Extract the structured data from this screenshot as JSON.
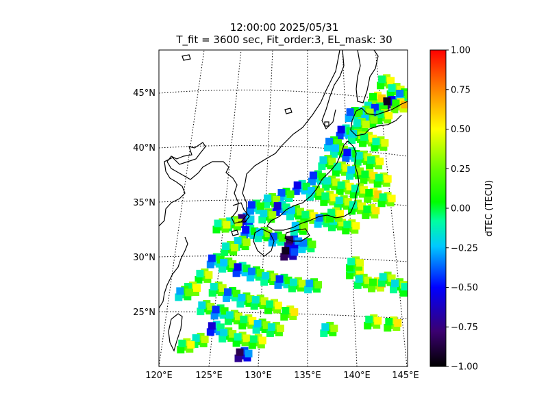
{
  "title": {
    "line1": "12:00:00 2025/05/31",
    "line2": "T_fit = 3600 sec, Fit_order:3, EL_mask: 30"
  },
  "map": {
    "lon_ticks": [
      "120°E",
      "125°E",
      "130°E",
      "135°E",
      "140°E",
      "145°E"
    ],
    "lat_ticks": [
      "25°N",
      "30°N",
      "35°N",
      "40°N",
      "45°N"
    ],
    "extent": {
      "lon": [
        120,
        145
      ],
      "lat": [
        20,
        49
      ]
    }
  },
  "colorbar": {
    "label": "dTEC (TECU)",
    "ticks": [
      "1.00",
      "0.75",
      "0.50",
      "0.25",
      "0.00",
      "−0.25",
      "−0.50",
      "−0.75",
      "−1.00"
    ],
    "range": [
      -1.0,
      1.0
    ],
    "colormap": [
      "#000000",
      "#3b0070",
      "#0000ff",
      "#00c8ff",
      "#00ff80",
      "#00ff00",
      "#80ff00",
      "#ffff00",
      "#ff8000",
      "#ff0000"
    ]
  },
  "chart_data": {
    "type": "heatmap",
    "title": "12:00:00 2025/05/31 / T_fit = 3600 sec, Fit_order:3, EL_mask: 30",
    "xlabel": "",
    "ylabel": "",
    "xlim": [
      120,
      145
    ],
    "ylim": [
      20,
      49
    ],
    "color_label": "dTEC (TECU)",
    "color_range": [
      -1.0,
      1.0
    ],
    "points": [
      [
        142.7,
        46.0,
        0.2
      ],
      [
        143.7,
        45.2,
        0.15
      ],
      [
        144.5,
        44.7,
        -0.1
      ],
      [
        141.8,
        44.4,
        0.3
      ],
      [
        143.2,
        44.0,
        -0.7
      ],
      [
        144.1,
        43.8,
        0.35
      ],
      [
        141.3,
        43.6,
        0.1
      ],
      [
        142.0,
        43.4,
        -0.2
      ],
      [
        140.6,
        43.1,
        0.05
      ],
      [
        139.5,
        43.0,
        -0.15
      ],
      [
        142.5,
        42.8,
        0.2
      ],
      [
        141.0,
        42.4,
        0.0
      ],
      [
        140.2,
        42.0,
        0.1
      ],
      [
        138.6,
        41.4,
        -0.3
      ],
      [
        139.8,
        41.0,
        0.05
      ],
      [
        140.9,
        40.7,
        0.2
      ],
      [
        142.1,
        40.3,
        0.15
      ],
      [
        137.4,
        40.3,
        -0.1
      ],
      [
        138.0,
        39.7,
        0.0
      ],
      [
        139.2,
        39.3,
        -0.25
      ],
      [
        140.4,
        39.0,
        0.1
      ],
      [
        141.6,
        38.6,
        0.2
      ],
      [
        136.8,
        38.6,
        0.05
      ],
      [
        138.2,
        38.0,
        0.15
      ],
      [
        139.6,
        37.7,
        0.0
      ],
      [
        141.0,
        37.3,
        0.25
      ],
      [
        142.4,
        37.0,
        0.2
      ],
      [
        135.8,
        37.2,
        -0.2
      ],
      [
        137.2,
        36.7,
        0.1
      ],
      [
        138.6,
        36.3,
        0.2
      ],
      [
        140.0,
        36.0,
        0.15
      ],
      [
        141.4,
        35.6,
        0.3
      ],
      [
        142.8,
        35.2,
        0.2
      ],
      [
        134.2,
        36.3,
        -0.3
      ],
      [
        135.6,
        35.8,
        0.0
      ],
      [
        137.0,
        35.3,
        0.2
      ],
      [
        138.4,
        34.9,
        0.1
      ],
      [
        139.8,
        34.5,
        0.15
      ],
      [
        141.2,
        34.1,
        0.25
      ],
      [
        132.6,
        35.6,
        -0.15
      ],
      [
        131.2,
        35.1,
        0.05
      ],
      [
        132.2,
        34.4,
        -0.35
      ],
      [
        133.6,
        34.0,
        0.0
      ],
      [
        135.0,
        33.6,
        0.2
      ],
      [
        136.4,
        33.3,
        -0.1
      ],
      [
        137.8,
        33.0,
        0.1
      ],
      [
        139.2,
        32.7,
        0.2
      ],
      [
        129.6,
        34.5,
        -0.2
      ],
      [
        130.8,
        33.7,
        0.05
      ],
      [
        128.6,
        33.3,
        -0.5
      ],
      [
        127.4,
        33.0,
        0.1
      ],
      [
        126.2,
        32.8,
        0.15
      ],
      [
        129.0,
        32.2,
        -0.25
      ],
      [
        130.4,
        32.0,
        0.0
      ],
      [
        131.8,
        31.6,
        -0.15
      ],
      [
        133.4,
        31.3,
        -0.6
      ],
      [
        134.8,
        31.0,
        -0.1
      ],
      [
        133.0,
        30.3,
        -0.7
      ],
      [
        128.2,
        31.2,
        0.05
      ],
      [
        127.0,
        30.7,
        0.1
      ],
      [
        125.6,
        29.6,
        -0.2
      ],
      [
        126.8,
        29.2,
        0.0
      ],
      [
        128.2,
        28.8,
        -0.3
      ],
      [
        129.6,
        28.4,
        -0.1
      ],
      [
        131.0,
        28.0,
        0.05
      ],
      [
        132.4,
        27.7,
        -0.2
      ],
      [
        133.8,
        27.4,
        0.1
      ],
      [
        135.4,
        27.3,
        -0.05
      ],
      [
        124.4,
        28.2,
        0.15
      ],
      [
        123.2,
        27.0,
        0.2
      ],
      [
        122.4,
        26.6,
        -0.05
      ],
      [
        125.8,
        27.0,
        0.1
      ],
      [
        127.2,
        26.5,
        -0.15
      ],
      [
        128.6,
        26.0,
        0.0
      ],
      [
        130.0,
        25.8,
        0.1
      ],
      [
        131.4,
        25.4,
        0.2
      ],
      [
        124.6,
        25.3,
        0.05
      ],
      [
        126.0,
        24.9,
        -0.2
      ],
      [
        127.4,
        24.4,
        0.1
      ],
      [
        128.8,
        24.0,
        0.2
      ],
      [
        130.2,
        23.6,
        0.0
      ],
      [
        131.6,
        23.3,
        0.1
      ],
      [
        133.0,
        24.8,
        0.25
      ],
      [
        125.6,
        23.4,
        -0.35
      ],
      [
        126.8,
        22.8,
        0.05
      ],
      [
        128.2,
        22.4,
        0.15
      ],
      [
        129.8,
        22.2,
        0.2
      ],
      [
        124.0,
        22.3,
        0.1
      ],
      [
        122.6,
        21.8,
        0.2
      ],
      [
        128.4,
        21.0,
        -0.6
      ],
      [
        139.6,
        28.6,
        0.2
      ],
      [
        140.4,
        27.7,
        0.1
      ],
      [
        141.8,
        27.4,
        0.35
      ],
      [
        142.8,
        27.9,
        0.1
      ],
      [
        144.0,
        27.3,
        0.05
      ],
      [
        145.0,
        27.0,
        0.15
      ],
      [
        141.4,
        24.0,
        0.2
      ],
      [
        143.4,
        23.8,
        0.25
      ],
      [
        137.0,
        23.3,
        0.05
      ],
      [
        139.6,
        29.3,
        0.15
      ],
      [
        137.6,
        33.8,
        0.2
      ],
      [
        134.0,
        32.6,
        0.0
      ]
    ]
  }
}
